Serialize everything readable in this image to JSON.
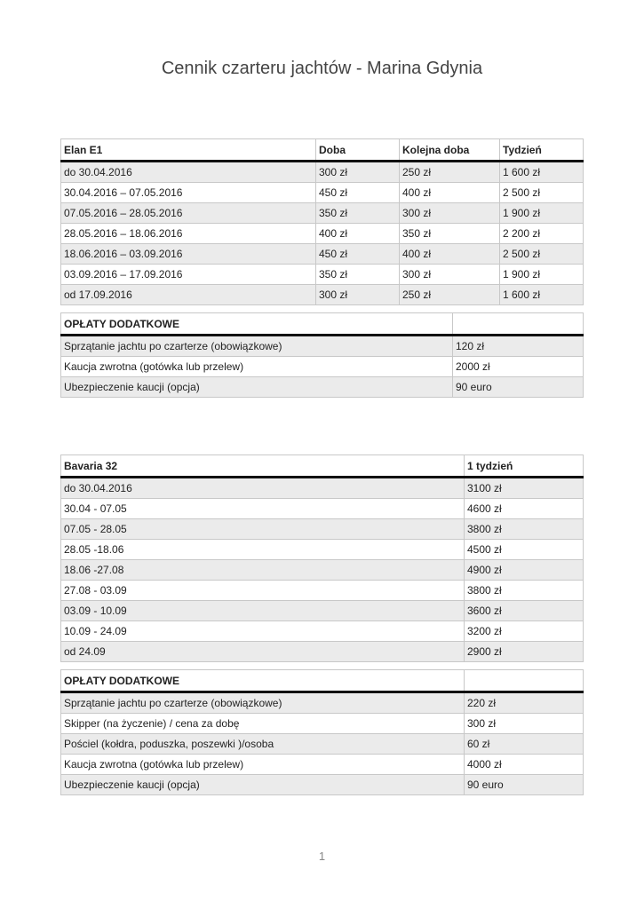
{
  "title": "Cennik czarteru jachtów - Marina Gdynia",
  "elan": {
    "headers": [
      "Elan E1",
      "Doba",
      "Kolejna doba",
      "Tydzień"
    ],
    "rows": [
      [
        "do 30.04.2016",
        "300 zł",
        "250 zł",
        "1 600 zł"
      ],
      [
        "30.04.2016 – 07.05.2016",
        "450 zł",
        "400 zł",
        "2 500 zł"
      ],
      [
        "07.05.2016 – 28.05.2016",
        "350 zł",
        "300 zł",
        "1 900 zł"
      ],
      [
        "28.05.2016 – 18.06.2016",
        "400 zł",
        "350 zł",
        "2 200 zł"
      ],
      [
        "18.06.2016 – 03.09.2016",
        "450 zł",
        "400 zł",
        "2 500 zł"
      ],
      [
        "03.09.2016 – 17.09.2016",
        "350 zł",
        "300 zł",
        "1 900 zł"
      ],
      [
        "od 17.09.2016",
        "300 zł",
        "250 zł",
        "1 600 zł"
      ]
    ]
  },
  "elan_fees": {
    "headers": [
      "OPŁATY DODATKOWE",
      ""
    ],
    "rows": [
      [
        "Sprzątanie jachtu po czarterze (obowiązkowe)",
        "120 zł"
      ],
      [
        "Kaucja zwrotna (gotówka lub przelew)",
        "2000 zł"
      ],
      [
        "Ubezpieczenie kaucji (opcja)",
        "90 euro"
      ]
    ]
  },
  "bavaria": {
    "headers": [
      "Bavaria 32",
      "1 tydzień"
    ],
    "rows": [
      [
        "do 30.04.2016",
        "3100 zł"
      ],
      [
        "30.04 - 07.05",
        "4600 zł"
      ],
      [
        "07.05 - 28.05",
        "3800 zł"
      ],
      [
        "28.05 -18.06",
        "4500 zł"
      ],
      [
        "18.06 -27.08",
        "4900 zł"
      ],
      [
        "27.08 - 03.09",
        "3800 zł"
      ],
      [
        "03.09 - 10.09",
        "3600 zł"
      ],
      [
        "10.09 - 24.09",
        "3200 zł"
      ],
      [
        "od 24.09",
        "2900 zł"
      ]
    ]
  },
  "bavaria_fees": {
    "headers": [
      "OPŁATY DODATKOWE",
      ""
    ],
    "rows": [
      [
        "Sprzątanie jachtu po czarterze (obowiązkowe)",
        "220 zł"
      ],
      [
        "Skipper (na życzenie) / cena za dobę",
        "300 zł"
      ],
      [
        "Pościel (kołdra, poduszka, poszewki )/osoba",
        "60 zł"
      ],
      [
        "Kaucja zwrotna (gotówka lub przelew)",
        "4000 zł"
      ],
      [
        "Ubezpieczenie kaucji (opcja)",
        "90 euro"
      ]
    ]
  },
  "page_number": "1"
}
